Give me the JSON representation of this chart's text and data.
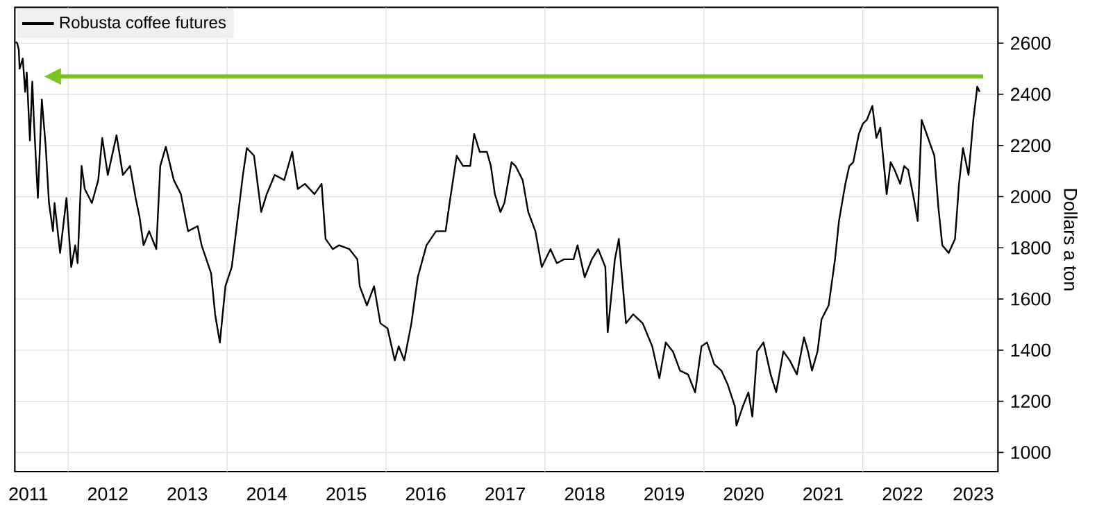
{
  "chart_data": {
    "type": "line",
    "ylabel": "Dollars a ton",
    "x": [
      2011.34,
      2011.36,
      2011.38,
      2011.39,
      2011.43,
      2011.46,
      2011.48,
      2011.52,
      2011.55,
      2011.57,
      2011.62,
      2011.67,
      2011.72,
      2011.76,
      2011.81,
      2011.83,
      2011.9,
      2011.98,
      2012.04,
      2012.09,
      2012.12,
      2012.17,
      2012.21,
      2012.3,
      2012.38,
      2012.43,
      2012.5,
      2012.61,
      2012.69,
      2012.78,
      2012.85,
      2012.9,
      2012.95,
      2013.02,
      2013.11,
      2013.16,
      2013.23,
      2013.33,
      2013.42,
      2013.51,
      2013.63,
      2013.68,
      2013.8,
      2013.85,
      2013.91,
      2013.98,
      2014.06,
      2014.2,
      2014.25,
      2014.34,
      2014.43,
      2014.5,
      2014.6,
      2014.72,
      2014.82,
      2014.89,
      2014.98,
      2015.1,
      2015.19,
      2015.24,
      2015.33,
      2015.41,
      2015.54,
      2015.64,
      2015.67,
      2015.76,
      2015.85,
      2015.93,
      2016.02,
      2016.11,
      2016.16,
      2016.23,
      2016.32,
      2016.4,
      2016.51,
      2016.63,
      2016.75,
      2016.8,
      2016.89,
      2016.97,
      2017.06,
      2017.11,
      2017.18,
      2017.27,
      2017.32,
      2017.37,
      2017.44,
      2017.49,
      2017.58,
      2017.63,
      2017.72,
      2017.79,
      2017.88,
      2017.96,
      2018.07,
      2018.15,
      2018.24,
      2018.36,
      2018.41,
      2018.5,
      2018.59,
      2018.67,
      2018.76,
      2018.79,
      2018.88,
      2018.93,
      2019.02,
      2019.11,
      2019.23,
      2019.35,
      2019.44,
      2019.52,
      2019.61,
      2019.7,
      2019.8,
      2019.89,
      2019.97,
      2020.04,
      2020.13,
      2020.22,
      2020.3,
      2020.39,
      2020.41,
      2020.49,
      2020.56,
      2020.61,
      2020.67,
      2020.75,
      2020.84,
      2020.91,
      2021,
      2021.08,
      2021.17,
      2021.26,
      2021.31,
      2021.36,
      2021.43,
      2021.48,
      2021.57,
      2021.65,
      2021.7,
      2021.78,
      2021.83,
      2021.88,
      2021.95,
      2022,
      2022.05,
      2022.12,
      2022.17,
      2022.22,
      2022.3,
      2022.35,
      2022.4,
      2022.47,
      2022.52,
      2022.57,
      2022.64,
      2022.69,
      2022.74,
      2022.82,
      2022.9,
      2022.95,
      2023,
      2023.08,
      2023.16,
      2023.21,
      2023.26,
      2023.33,
      2023.39,
      2023.44,
      2023.47
    ],
    "series": [
      {
        "name": "Robusta coffee futures",
        "color": "#000000",
        "values": [
          2605,
          2600,
          2575,
          2500,
          2540,
          2410,
          2485,
          2220,
          2450,
          2300,
          1995,
          2380,
          2190,
          1975,
          1865,
          1975,
          1780,
          1995,
          1725,
          1810,
          1740,
          2120,
          2030,
          1975,
          2065,
          2230,
          2085,
          2240,
          2085,
          2120,
          1995,
          1920,
          1810,
          1865,
          1795,
          2120,
          2195,
          2065,
          2010,
          1865,
          1885,
          1810,
          1700,
          1540,
          1430,
          1650,
          1725,
          2085,
          2190,
          2160,
          1940,
          2010,
          2085,
          2065,
          2175,
          2030,
          2050,
          2010,
          2050,
          1835,
          1795,
          1810,
          1795,
          1755,
          1650,
          1575,
          1650,
          1505,
          1485,
          1360,
          1415,
          1360,
          1505,
          1685,
          1810,
          1865,
          1865,
          1975,
          2160,
          2120,
          2120,
          2245,
          2175,
          2175,
          2120,
          2010,
          1940,
          1975,
          2135,
          2120,
          2065,
          1940,
          1865,
          1725,
          1795,
          1740,
          1755,
          1755,
          1810,
          1685,
          1755,
          1795,
          1725,
          1470,
          1755,
          1835,
          1505,
          1540,
          1505,
          1415,
          1290,
          1430,
          1395,
          1320,
          1305,
          1235,
          1415,
          1430,
          1345,
          1320,
          1265,
          1180,
          1105,
          1180,
          1235,
          1140,
          1395,
          1430,
          1305,
          1235,
          1395,
          1360,
          1305,
          1450,
          1395,
          1320,
          1395,
          1520,
          1575,
          1755,
          1905,
          2050,
          2120,
          2135,
          2245,
          2285,
          2300,
          2355,
          2230,
          2270,
          2010,
          2135,
          2105,
          2050,
          2120,
          2105,
          1995,
          1905,
          2300,
          2230,
          2160,
          1960,
          1810,
          1780,
          1835,
          2050,
          2190,
          2085,
          2300,
          2430,
          2410
        ]
      }
    ],
    "xlim": [
      2011.33,
      2023.7
    ],
    "ylim": [
      925,
      2740
    ],
    "xticks": [
      {
        "value": 2011.5,
        "label": "2011"
      },
      {
        "value": 2012,
        "label": null
      },
      {
        "value": 2012.5,
        "label": "2012"
      },
      {
        "value": 2013.5,
        "label": "2013"
      },
      {
        "value": 2014,
        "label": null
      },
      {
        "value": 2014.5,
        "label": "2014"
      },
      {
        "value": 2015.5,
        "label": "2015"
      },
      {
        "value": 2016,
        "label": null
      },
      {
        "value": 2016.5,
        "label": "2016"
      },
      {
        "value": 2017.5,
        "label": "2017"
      },
      {
        "value": 2018,
        "label": null
      },
      {
        "value": 2018.5,
        "label": "2018"
      },
      {
        "value": 2019.5,
        "label": "2019"
      },
      {
        "value": 2020,
        "label": null
      },
      {
        "value": 2020.5,
        "label": "2020"
      },
      {
        "value": 2021.5,
        "label": "2021"
      },
      {
        "value": 2022,
        "label": null
      },
      {
        "value": 2022.5,
        "label": "2022"
      },
      {
        "value": 2023.39,
        "label": "2023"
      }
    ],
    "yticks": [
      1000,
      1200,
      1400,
      1600,
      1800,
      2000,
      2200,
      2400,
      2600
    ],
    "ref_lines": [
      {
        "axis": "y",
        "value": 2470,
        "color": "#7ac520"
      }
    ],
    "grid": true,
    "legend": "top left",
    "marker": "none",
    "line_style": "solid"
  }
}
